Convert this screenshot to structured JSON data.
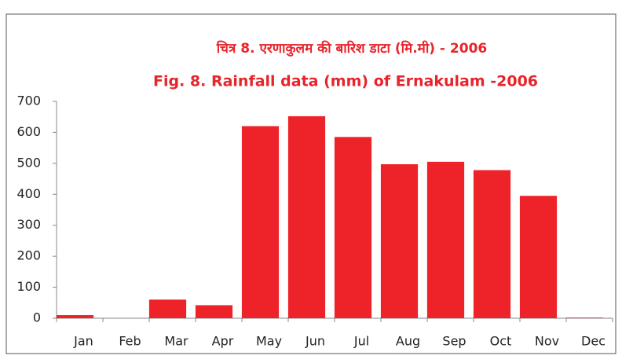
{
  "chart_data": {
    "type": "bar",
    "title": "Fig. 8. Rainfall data (mm) of Ernakulam -2006",
    "subtitle": "चित्र 8. एरणाकुलम की बारिश डाटा (मि.मी) - 2006",
    "categories": [
      "Jan",
      "Feb",
      "Mar",
      "Apr",
      "May",
      "Jun",
      "Jul",
      "Aug",
      "Sep",
      "Oct",
      "Nov",
      "Dec"
    ],
    "values": [
      10,
      0,
      60,
      42,
      620,
      652,
      585,
      497,
      505,
      478,
      395,
      2
    ],
    "color": "#ee2229",
    "ylim": [
      0,
      700
    ],
    "yticks": [
      0,
      100,
      200,
      300,
      400,
      500,
      600,
      700
    ],
    "grid": false
  }
}
